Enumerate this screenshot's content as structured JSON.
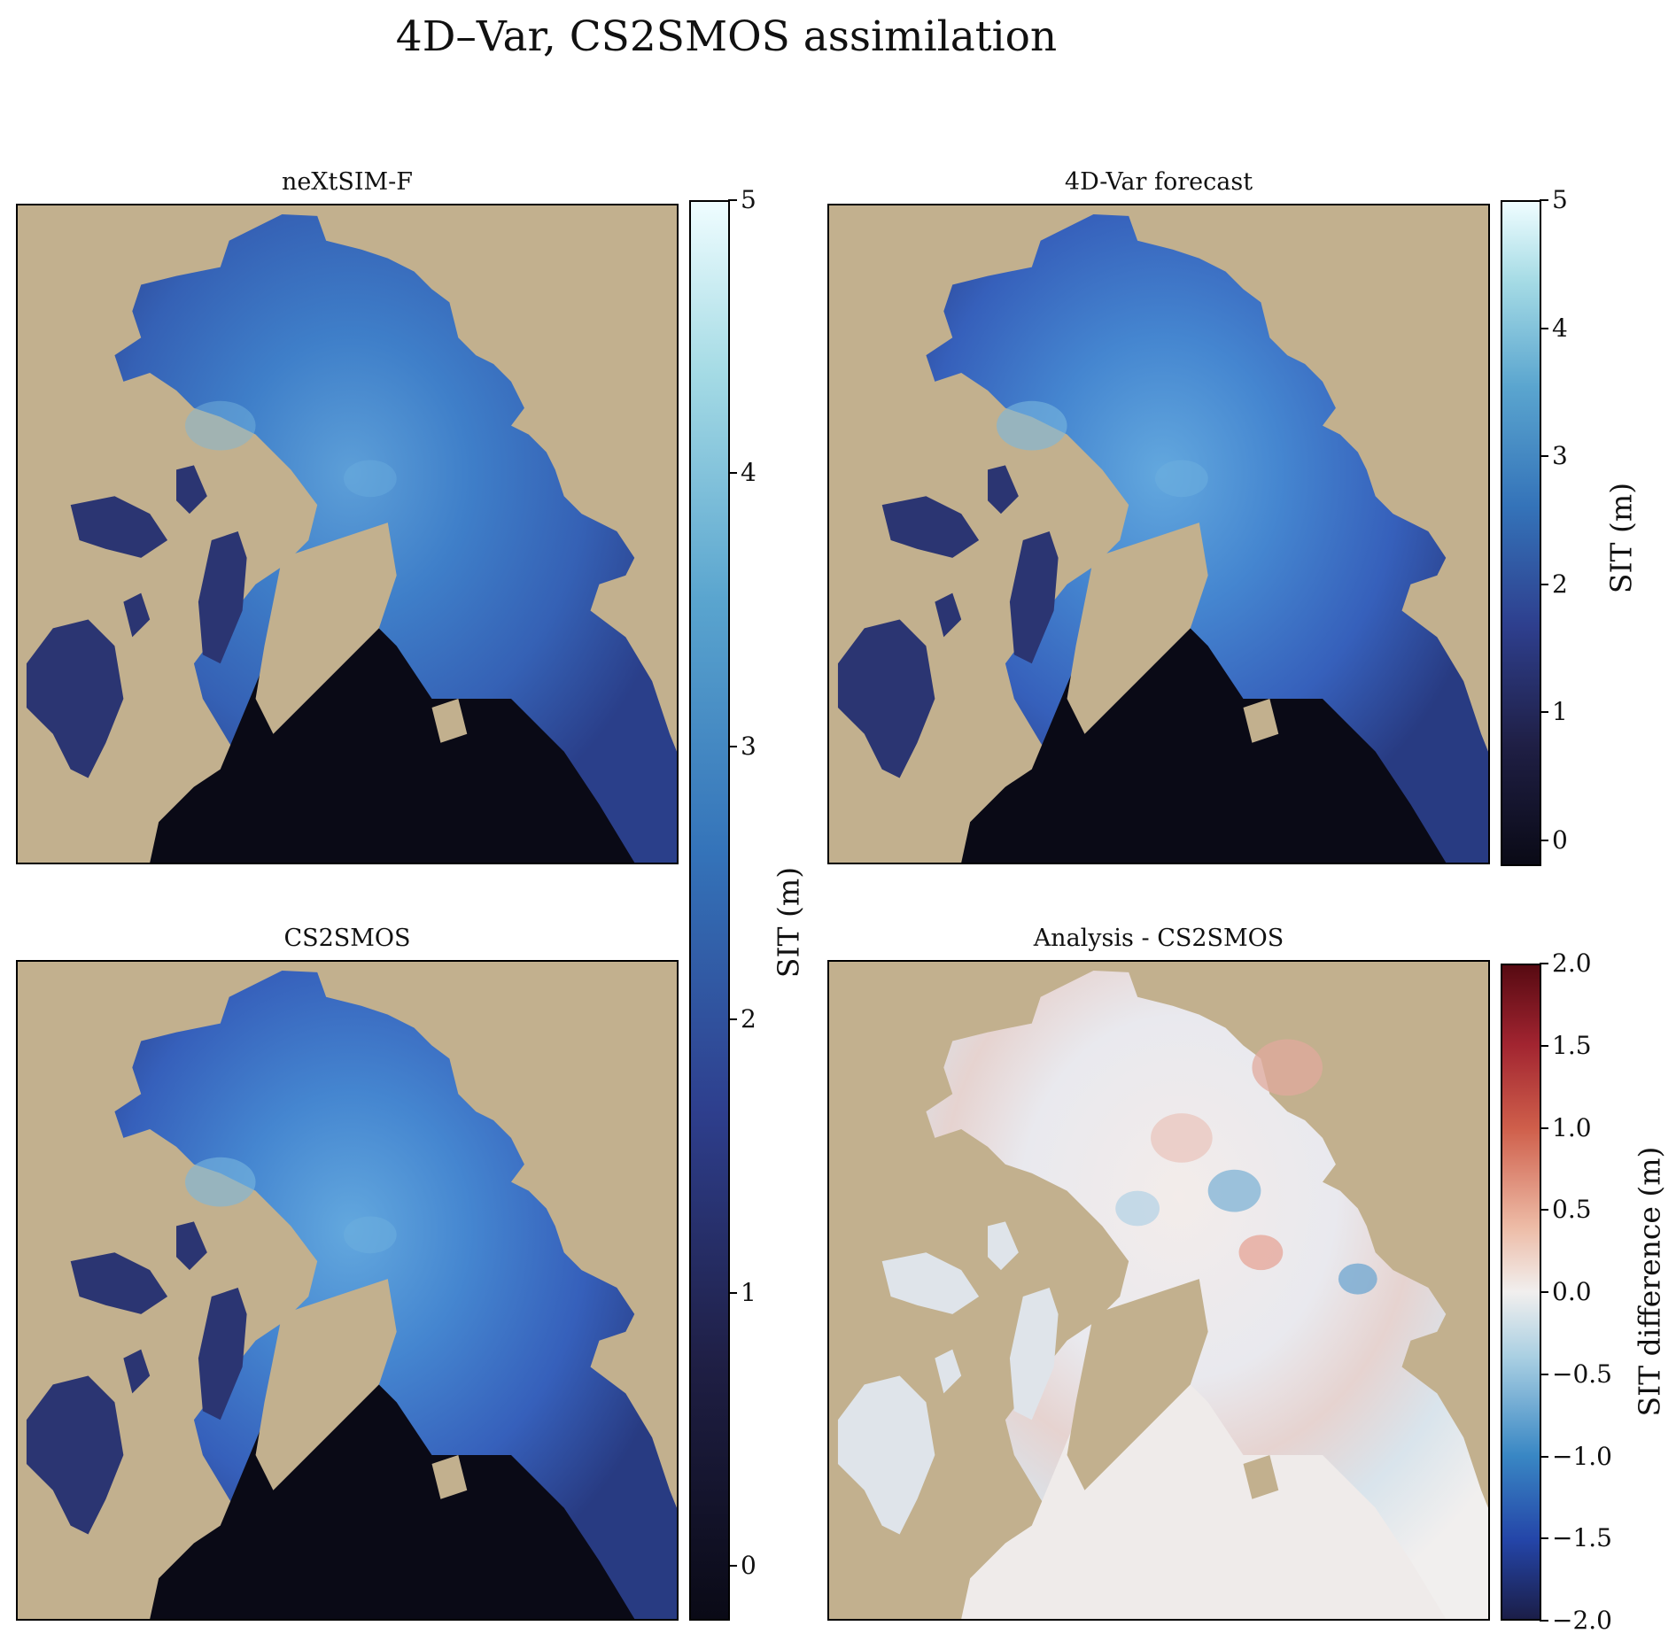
{
  "figure": {
    "suptitle": "4D–Var, CS2SMOS assimilation",
    "land_color": "#c2b08e"
  },
  "panels": [
    {
      "title": "neXtSIM-F",
      "style": "raw"
    },
    {
      "title": "4D-Var forecast",
      "style": "smooth"
    },
    {
      "title": "CS2SMOS",
      "style": "smooth"
    },
    {
      "title": "Analysis - CS2SMOS",
      "style": "diff"
    }
  ],
  "colorbars": {
    "sit_large": {
      "label": "SIT (m)",
      "ticks": [
        "0",
        "1",
        "2",
        "3",
        "4",
        "5"
      ]
    },
    "sit_small": {
      "label": "SIT (m)",
      "ticks": [
        "0",
        "1",
        "2",
        "3",
        "4",
        "5"
      ]
    },
    "diff": {
      "label": "SIT difference (m)",
      "ticks": [
        "−2.0",
        "−1.5",
        "−1.0",
        "−0.5",
        "0.0",
        "0.5",
        "1.0",
        "1.5",
        "2.0"
      ]
    }
  },
  "chart_data": [
    {
      "type": "heatmap",
      "title": "neXtSIM-F",
      "colorbar_label": "SIT (m)",
      "vmin": -0.2,
      "vmax": 5,
      "ticks": [
        0,
        1,
        2,
        3,
        4,
        5
      ]
    },
    {
      "type": "heatmap",
      "title": "4D-Var forecast",
      "colorbar_label": "SIT (m)",
      "vmin": -0.2,
      "vmax": 5,
      "ticks": [
        0,
        1,
        2,
        3,
        4,
        5
      ]
    },
    {
      "type": "heatmap",
      "title": "CS2SMOS",
      "colorbar_label": "SIT (m)",
      "vmin": -0.2,
      "vmax": 5,
      "ticks": [
        0,
        1,
        2,
        3,
        4,
        5
      ]
    },
    {
      "type": "heatmap",
      "title": "Analysis - CS2SMOS",
      "colorbar_label": "SIT difference (m)",
      "vmin": -2.0,
      "vmax": 2.0,
      "ticks": [
        -2.0,
        -1.5,
        -1.0,
        -0.5,
        0.0,
        0.5,
        1.0,
        1.5,
        2.0
      ]
    }
  ]
}
